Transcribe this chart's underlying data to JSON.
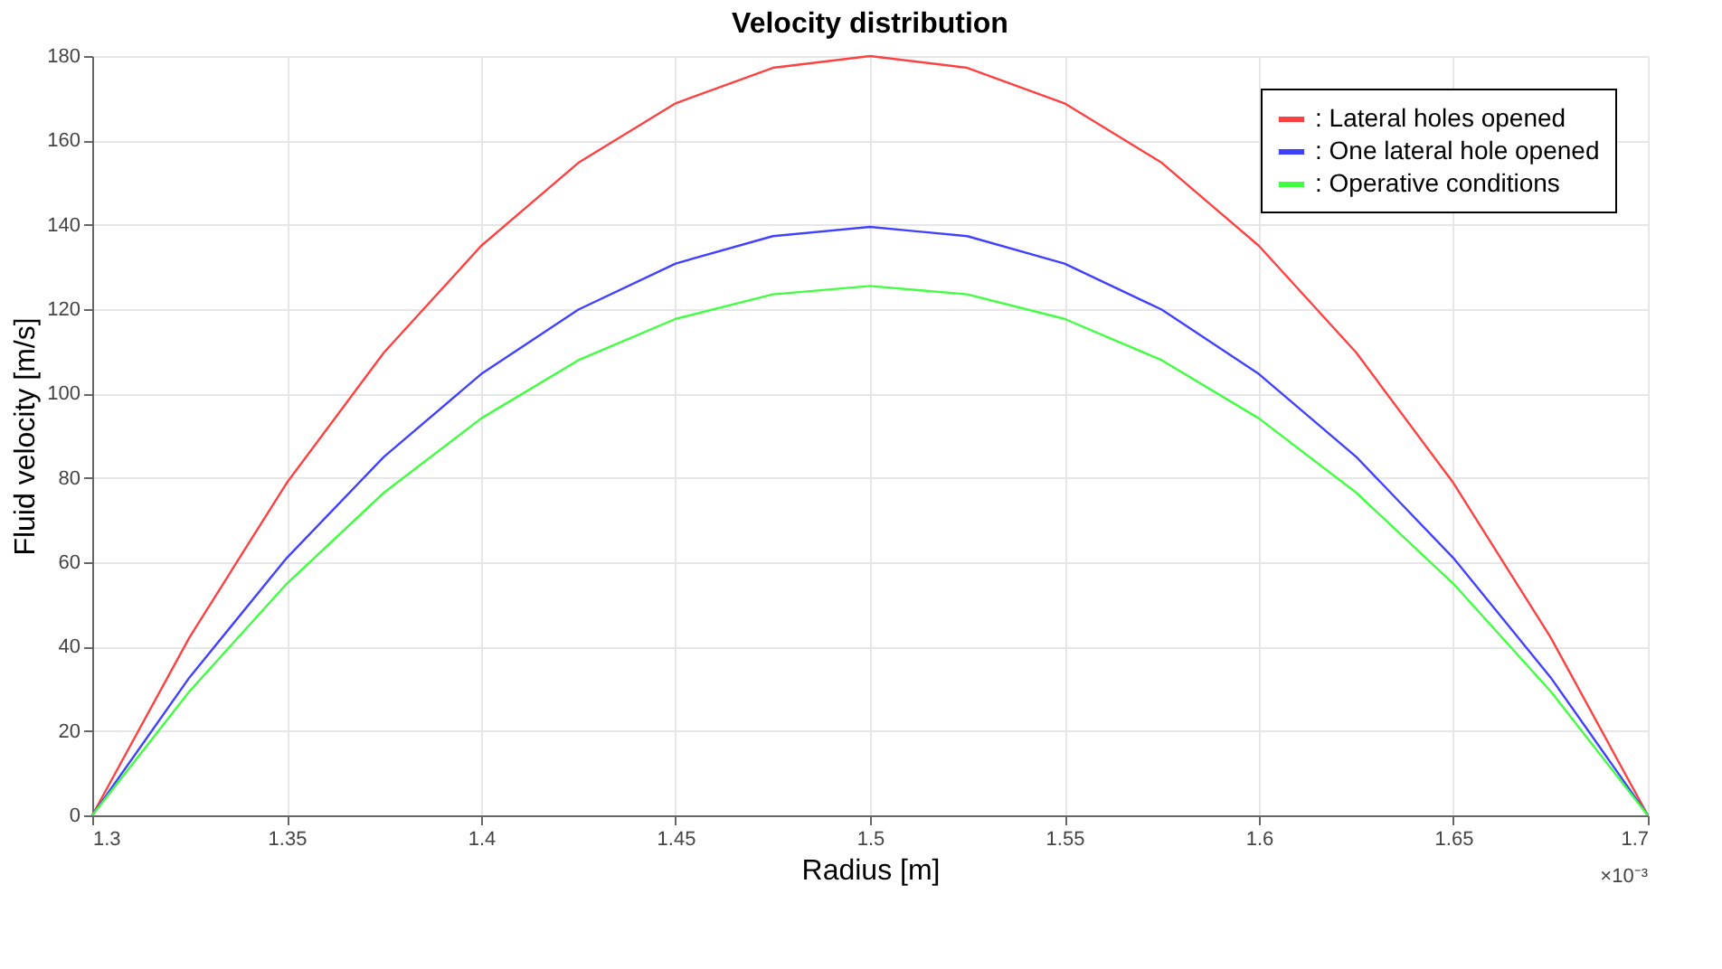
{
  "chart_data": {
    "type": "line",
    "title": "Velocity distribution",
    "xlabel": "Radius [m]",
    "ylabel": "Fluid velocity [m/s]",
    "x": [
      1.3,
      1.325,
      1.35,
      1.375,
      1.4,
      1.425,
      1.45,
      1.475,
      1.5,
      1.525,
      1.55,
      1.575,
      1.6,
      1.625,
      1.65,
      1.675,
      1.7
    ],
    "series": [
      {
        "name": ": Lateral holes opened",
        "color": "#ff4040",
        "values": [
          0,
          42.2,
          78.8,
          109.7,
          135,
          154.7,
          168.8,
          177.2,
          180,
          177.2,
          168.8,
          154.7,
          135,
          109.7,
          78.8,
          42.2,
          0
        ]
      },
      {
        "name": ": One lateral hole opened",
        "color": "#4040ff",
        "values": [
          0,
          32.7,
          61.0,
          85.0,
          104.6,
          119.9,
          130.8,
          137.3,
          139.5,
          137.3,
          130.8,
          119.9,
          104.6,
          85.0,
          61.0,
          32.7,
          0
        ]
      },
      {
        "name": ": Operative conditions",
        "color": "#40ff40",
        "values": [
          0,
          29.4,
          54.9,
          76.5,
          94.1,
          107.9,
          117.7,
          123.5,
          125.5,
          123.5,
          117.7,
          107.9,
          94.1,
          76.5,
          54.9,
          29.4,
          0
        ]
      }
    ],
    "xlim": [
      1.3,
      1.7
    ],
    "xticks": [
      1.3,
      1.35,
      1.4,
      1.45,
      1.5,
      1.55,
      1.6,
      1.65,
      1.7
    ],
    "ylim": [
      0,
      180
    ],
    "yticks": [
      0,
      20,
      40,
      60,
      80,
      100,
      120,
      140,
      160,
      180
    ],
    "grid": true,
    "legend": "top right",
    "line_style": "solid",
    "marker": "none",
    "annotations": [
      "×10⁻³"
    ]
  }
}
